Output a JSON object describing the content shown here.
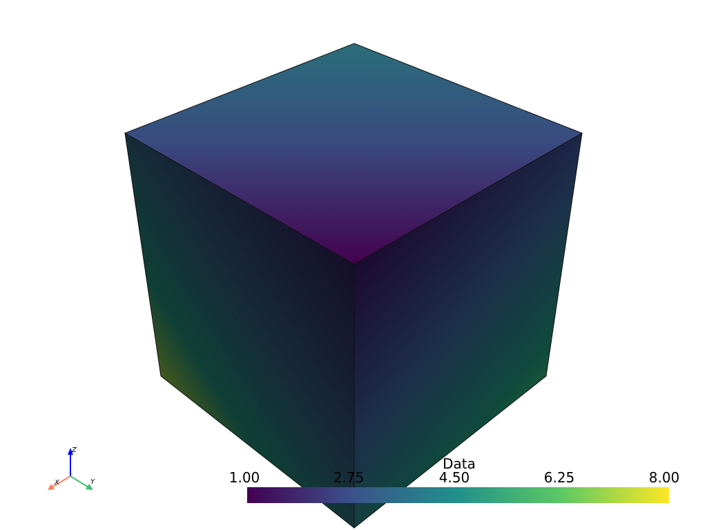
{
  "scalar_bar": {
    "title": "Data",
    "colormap": "viridis",
    "range": [
      1.0,
      8.0
    ],
    "tick_labels": [
      "1.00",
      "2.75",
      "4.50",
      "6.25",
      "8.00"
    ],
    "colors": [
      "#440154",
      "#3b528b",
      "#21918c",
      "#5ec962",
      "#fde725"
    ]
  },
  "axes_widget": {
    "x_label": "X",
    "y_label": "Y",
    "z_label": "Z",
    "x_color": "#ff8060",
    "y_color": "#40c070",
    "z_color": "#0000ff"
  },
  "mesh": {
    "shape": "cube",
    "scalars": "Data"
  }
}
